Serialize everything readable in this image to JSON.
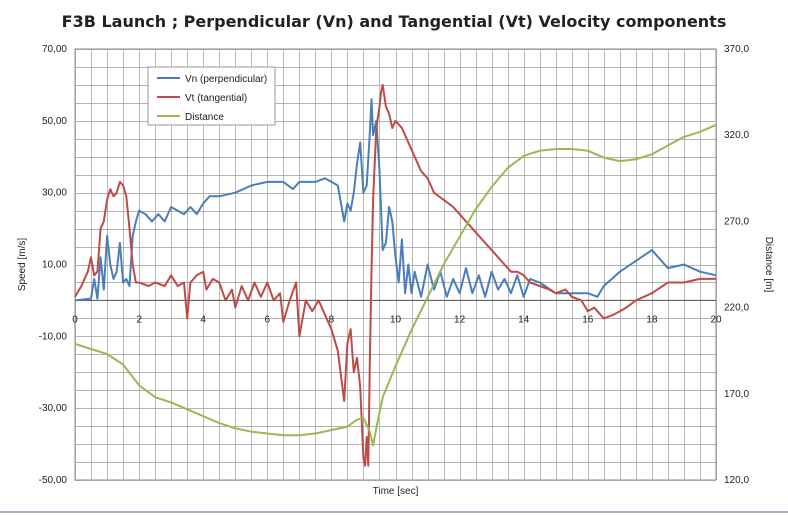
{
  "chart_data": {
    "type": "line",
    "title": "F3B  Launch ; Perpendicular (Vn) and Tangential (Vt) Velocity components",
    "xlabel": "Time [sec]",
    "ylabel": "Speed [m/s]",
    "y2label": "Distance [m]",
    "xlim": [
      0,
      20
    ],
    "ylim": [
      -50,
      70
    ],
    "y2lim": [
      120,
      370
    ],
    "x_ticks": [
      "0",
      "2",
      "4",
      "6",
      "8",
      "10",
      "12",
      "14",
      "16",
      "18",
      "20"
    ],
    "y_ticks": [
      "70,00",
      "50,00",
      "30,00",
      "10,00",
      "-10,00",
      "-30,00",
      "-50,00"
    ],
    "y2_ticks": [
      "370,0",
      "320,0",
      "270,0",
      "220,0",
      "170,0",
      "120,0"
    ],
    "grid": true,
    "legend_position": "top-left",
    "series": [
      {
        "name": "Vn (perpendicular)",
        "axis": "left",
        "color": "#4a7ebb",
        "points": [
          [
            0,
            0
          ],
          [
            0.5,
            0.5
          ],
          [
            0.6,
            6
          ],
          [
            0.7,
            0.5
          ],
          [
            0.8,
            12
          ],
          [
            0.9,
            3
          ],
          [
            1.0,
            18
          ],
          [
            1.1,
            10
          ],
          [
            1.2,
            6
          ],
          [
            1.3,
            8
          ],
          [
            1.4,
            16
          ],
          [
            1.5,
            5
          ],
          [
            1.6,
            6
          ],
          [
            1.7,
            4
          ],
          [
            1.8,
            18
          ],
          [
            1.9,
            22
          ],
          [
            2.0,
            25
          ],
          [
            2.2,
            24
          ],
          [
            2.4,
            22
          ],
          [
            2.6,
            24
          ],
          [
            2.8,
            22
          ],
          [
            3.0,
            26
          ],
          [
            3.2,
            25
          ],
          [
            3.4,
            24
          ],
          [
            3.6,
            26
          ],
          [
            3.8,
            24
          ],
          [
            4.0,
            27
          ],
          [
            4.2,
            29
          ],
          [
            4.5,
            29
          ],
          [
            5.0,
            30
          ],
          [
            5.5,
            32
          ],
          [
            6.0,
            33
          ],
          [
            6.5,
            33
          ],
          [
            6.8,
            31
          ],
          [
            7.0,
            33
          ],
          [
            7.5,
            33
          ],
          [
            7.8,
            34
          ],
          [
            8.0,
            33
          ],
          [
            8.2,
            32
          ],
          [
            8.4,
            22
          ],
          [
            8.5,
            27
          ],
          [
            8.6,
            25
          ],
          [
            8.7,
            30
          ],
          [
            8.8,
            38
          ],
          [
            8.9,
            44
          ],
          [
            9.0,
            30
          ],
          [
            9.1,
            32
          ],
          [
            9.2,
            47
          ],
          [
            9.25,
            56
          ],
          [
            9.3,
            46
          ],
          [
            9.4,
            50
          ],
          [
            9.5,
            36
          ],
          [
            9.6,
            14
          ],
          [
            9.7,
            16
          ],
          [
            9.8,
            26
          ],
          [
            9.9,
            22
          ],
          [
            10.0,
            12
          ],
          [
            10.1,
            5
          ],
          [
            10.2,
            17
          ],
          [
            10.3,
            2
          ],
          [
            10.4,
            10
          ],
          [
            10.5,
            2
          ],
          [
            10.6,
            8
          ],
          [
            10.8,
            1
          ],
          [
            11.0,
            10
          ],
          [
            11.2,
            3
          ],
          [
            11.4,
            8
          ],
          [
            11.6,
            1
          ],
          [
            11.8,
            6
          ],
          [
            12.0,
            2
          ],
          [
            12.2,
            9
          ],
          [
            12.4,
            2
          ],
          [
            12.6,
            7
          ],
          [
            12.8,
            1
          ],
          [
            13.0,
            8
          ],
          [
            13.2,
            3
          ],
          [
            13.4,
            6
          ],
          [
            13.6,
            2
          ],
          [
            13.8,
            7
          ],
          [
            14.0,
            1
          ],
          [
            14.2,
            6
          ],
          [
            14.5,
            5
          ],
          [
            15.0,
            2
          ],
          [
            15.5,
            2
          ],
          [
            16.0,
            2
          ],
          [
            16.3,
            1
          ],
          [
            16.5,
            4
          ],
          [
            17.0,
            8
          ],
          [
            17.5,
            11
          ],
          [
            18.0,
            14
          ],
          [
            18.5,
            9
          ],
          [
            19.0,
            10
          ],
          [
            19.5,
            8
          ],
          [
            20.0,
            7
          ]
        ]
      },
      {
        "name": "Vt (tangential)",
        "axis": "left",
        "color": "#be4b48",
        "points": [
          [
            0,
            1
          ],
          [
            0.2,
            4
          ],
          [
            0.4,
            8
          ],
          [
            0.5,
            12
          ],
          [
            0.6,
            7
          ],
          [
            0.7,
            8
          ],
          [
            0.8,
            20
          ],
          [
            0.9,
            22
          ],
          [
            1.0,
            28
          ],
          [
            1.1,
            31
          ],
          [
            1.2,
            29
          ],
          [
            1.3,
            30
          ],
          [
            1.4,
            33
          ],
          [
            1.5,
            32
          ],
          [
            1.6,
            29
          ],
          [
            1.7,
            20
          ],
          [
            1.8,
            10
          ],
          [
            1.9,
            5
          ],
          [
            2.0,
            5
          ],
          [
            2.3,
            4
          ],
          [
            2.5,
            5
          ],
          [
            2.8,
            4
          ],
          [
            3.0,
            7
          ],
          [
            3.2,
            4
          ],
          [
            3.4,
            5
          ],
          [
            3.5,
            -5
          ],
          [
            3.6,
            5
          ],
          [
            3.8,
            7
          ],
          [
            4.0,
            8
          ],
          [
            4.1,
            3
          ],
          [
            4.3,
            6
          ],
          [
            4.5,
            5
          ],
          [
            4.7,
            0
          ],
          [
            4.9,
            3
          ],
          [
            5.0,
            -2
          ],
          [
            5.2,
            4
          ],
          [
            5.4,
            0
          ],
          [
            5.6,
            5
          ],
          [
            5.8,
            1
          ],
          [
            6.0,
            5
          ],
          [
            6.2,
            0
          ],
          [
            6.4,
            2
          ],
          [
            6.5,
            -6
          ],
          [
            6.7,
            0
          ],
          [
            6.9,
            5
          ],
          [
            7.0,
            -10
          ],
          [
            7.2,
            0
          ],
          [
            7.4,
            -3
          ],
          [
            7.6,
            0
          ],
          [
            7.8,
            -4
          ],
          [
            8.0,
            -8
          ],
          [
            8.2,
            -14
          ],
          [
            8.4,
            -28
          ],
          [
            8.5,
            -12
          ],
          [
            8.6,
            -8
          ],
          [
            8.7,
            -20
          ],
          [
            8.8,
            -16
          ],
          [
            8.9,
            -24
          ],
          [
            9.0,
            -44
          ],
          [
            9.05,
            -46
          ],
          [
            9.1,
            -38
          ],
          [
            9.15,
            -46
          ],
          [
            9.2,
            -16
          ],
          [
            9.25,
            8
          ],
          [
            9.3,
            28
          ],
          [
            9.4,
            48
          ],
          [
            9.5,
            54
          ],
          [
            9.55,
            58
          ],
          [
            9.6,
            60
          ],
          [
            9.7,
            54
          ],
          [
            9.8,
            52
          ],
          [
            9.9,
            48
          ],
          [
            10.0,
            50
          ],
          [
            10.2,
            48
          ],
          [
            10.4,
            44
          ],
          [
            10.6,
            40
          ],
          [
            10.8,
            36
          ],
          [
            11.0,
            34
          ],
          [
            11.2,
            30
          ],
          [
            11.5,
            28
          ],
          [
            11.8,
            26
          ],
          [
            12.0,
            24
          ],
          [
            12.2,
            22
          ],
          [
            12.4,
            20
          ],
          [
            12.6,
            18
          ],
          [
            12.8,
            16
          ],
          [
            13.0,
            14
          ],
          [
            13.2,
            12
          ],
          [
            13.4,
            10
          ],
          [
            13.6,
            8
          ],
          [
            13.8,
            8
          ],
          [
            14.0,
            7
          ],
          [
            14.2,
            5
          ],
          [
            14.5,
            4
          ],
          [
            14.8,
            3
          ],
          [
            15.0,
            2
          ],
          [
            15.3,
            3
          ],
          [
            15.5,
            1
          ],
          [
            15.8,
            0
          ],
          [
            16.0,
            -3
          ],
          [
            16.2,
            -2
          ],
          [
            16.5,
            -5
          ],
          [
            16.8,
            -4
          ],
          [
            17.0,
            -3
          ],
          [
            17.2,
            -2
          ],
          [
            17.5,
            0
          ],
          [
            18.0,
            2
          ],
          [
            18.5,
            5
          ],
          [
            19.0,
            5
          ],
          [
            19.5,
            6
          ],
          [
            20.0,
            6
          ]
        ]
      },
      {
        "name": "Distance",
        "axis": "right",
        "color": "#98b954",
        "points": [
          [
            0,
            199
          ],
          [
            0.5,
            196
          ],
          [
            1.0,
            193
          ],
          [
            1.5,
            187
          ],
          [
            2.0,
            175
          ],
          [
            2.5,
            168
          ],
          [
            3.0,
            165
          ],
          [
            3.5,
            161
          ],
          [
            4.0,
            157
          ],
          [
            4.5,
            153
          ],
          [
            5.0,
            150
          ],
          [
            5.5,
            148
          ],
          [
            6.0,
            147
          ],
          [
            6.5,
            146
          ],
          [
            7.0,
            146
          ],
          [
            7.5,
            147
          ],
          [
            8.0,
            149
          ],
          [
            8.5,
            151
          ],
          [
            8.8,
            155
          ],
          [
            9.0,
            156
          ],
          [
            9.2,
            148
          ],
          [
            9.3,
            140
          ],
          [
            9.4,
            150
          ],
          [
            9.6,
            168
          ],
          [
            10.0,
            186
          ],
          [
            10.5,
            207
          ],
          [
            11.0,
            226
          ],
          [
            11.5,
            245
          ],
          [
            12.0,
            261
          ],
          [
            12.5,
            277
          ],
          [
            13.0,
            290
          ],
          [
            13.5,
            301
          ],
          [
            14.0,
            308
          ],
          [
            14.5,
            311
          ],
          [
            15.0,
            312
          ],
          [
            15.5,
            312
          ],
          [
            16.0,
            311
          ],
          [
            16.5,
            307
          ],
          [
            17.0,
            305
          ],
          [
            17.5,
            306
          ],
          [
            18.0,
            309
          ],
          [
            18.5,
            314
          ],
          [
            19.0,
            319
          ],
          [
            19.5,
            322
          ],
          [
            20.0,
            326
          ]
        ]
      }
    ]
  }
}
